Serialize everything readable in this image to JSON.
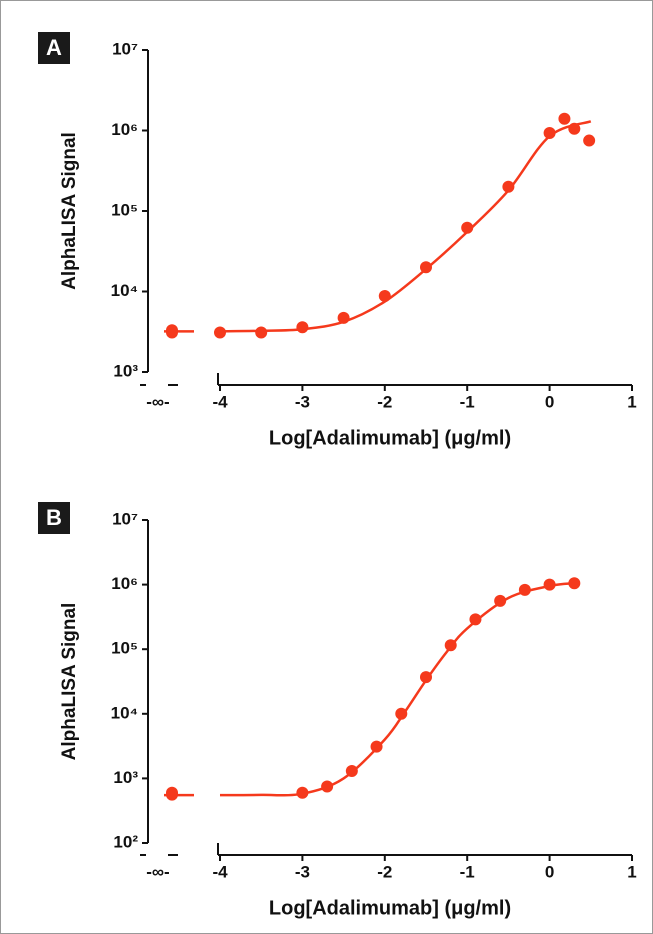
{
  "chart_data": [
    {
      "type": "scatter",
      "panel_label": "A",
      "y_label": "AlphaLISA Signal",
      "x_label": "Log[Adalimumab] (μg/ml)",
      "color": "#f5391c",
      "log_y": true,
      "x": [
        -4,
        -3.5,
        -3,
        -2.5,
        -2,
        -1.5,
        -1,
        -0.5,
        0,
        0.18,
        0.3,
        0.48
      ],
      "values": [
        3100,
        3100,
        3600,
        4700,
        8800,
        20000,
        62000,
        200000,
        930000,
        1400000,
        1050000,
        750000
      ],
      "control": {
        "label": "-∞-",
        "values": [
          3300,
          3100
        ]
      },
      "fit": {
        "x": [
          -4,
          -3.5,
          -3,
          -2.5,
          -2,
          -1.5,
          -1,
          -0.5,
          0,
          0.5
        ],
        "values": [
          3200,
          3250,
          3400,
          4200,
          7500,
          19000,
          55000,
          180000,
          850000,
          1300000
        ]
      },
      "xlim": [
        -4,
        1
      ],
      "xticks": [
        -4,
        -3,
        -2,
        -1,
        0,
        1
      ],
      "ylim": [
        1000,
        10000000
      ],
      "yticks": [
        {
          "value": 1000,
          "label": "10³"
        },
        {
          "value": 10000,
          "label": "10⁴"
        },
        {
          "value": 100000,
          "label": "10⁵"
        },
        {
          "value": 1000000,
          "label": "10⁶"
        },
        {
          "value": 10000000,
          "label": "10⁷"
        }
      ]
    },
    {
      "type": "scatter",
      "panel_label": "B",
      "y_label": "AlphaLISA Signal",
      "x_label": "Log[Adalimumab] (μg/ml)",
      "color": "#f5391c",
      "log_y": true,
      "x": [
        -3,
        -2.7,
        -2.4,
        -2.1,
        -1.8,
        -1.5,
        -1.2,
        -0.9,
        -0.6,
        -0.3,
        0,
        0.3
      ],
      "values": [
        600,
        750,
        1300,
        3100,
        10000,
        37000,
        115000,
        290000,
        560000,
        830000,
        1000000,
        1050000
      ],
      "control": {
        "label": "-∞-",
        "values": [
          560,
          600
        ]
      },
      "fit": {
        "x": [
          -4,
          -3.5,
          -3,
          -2.5,
          -2,
          -1.75,
          -1.5,
          -1.25,
          -1,
          -0.5,
          0,
          0.3
        ],
        "values": [
          550,
          555,
          580,
          1000,
          4000,
          11000,
          33000,
          90000,
          210000,
          620000,
          950000,
          1050000
        ]
      },
      "xlim": [
        -4,
        1
      ],
      "xticks": [
        -4,
        -3,
        -2,
        -1,
        0,
        1
      ],
      "ylim": [
        100,
        10000000
      ],
      "yticks": [
        {
          "value": 100,
          "label": "10²"
        },
        {
          "value": 1000,
          "label": "10³"
        },
        {
          "value": 10000,
          "label": "10⁴"
        },
        {
          "value": 100000,
          "label": "10⁵"
        },
        {
          "value": 1000000,
          "label": "10⁶"
        },
        {
          "value": 10000000,
          "label": "10⁷"
        }
      ]
    }
  ]
}
